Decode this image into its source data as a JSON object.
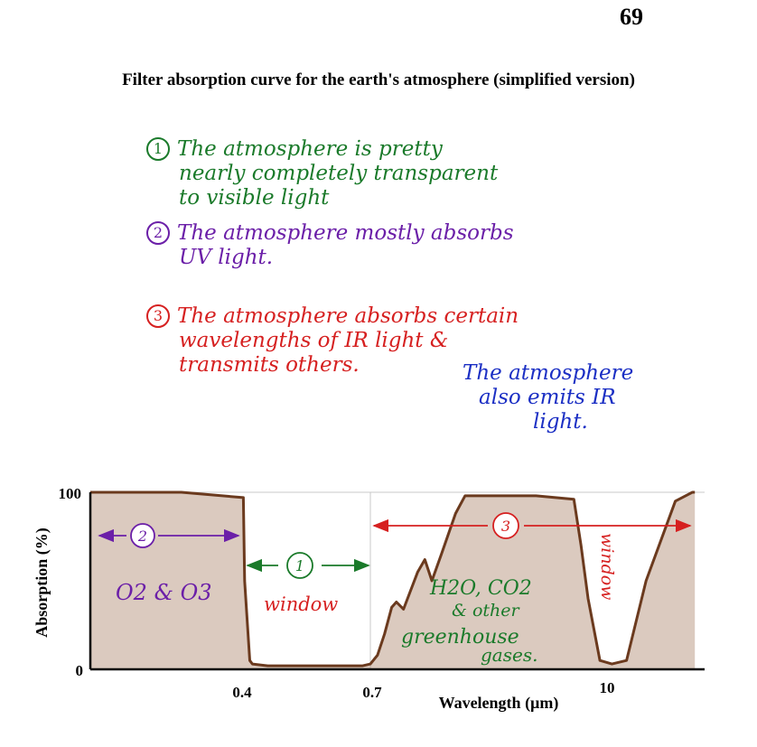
{
  "page_number": "69",
  "title": "Filter absorption curve for the earth's atmosphere (simplified version)",
  "notes": [
    {
      "marker": "1",
      "color": "#1a7a2a",
      "lines": [
        "The atmosphere is pretty",
        "nearly completely transparent",
        "to visible light"
      ]
    },
    {
      "marker": "2",
      "color": "#6b1fa8",
      "lines": [
        "The atmosphere mostly absorbs",
        "UV light."
      ]
    },
    {
      "marker": "3",
      "color": "#d62020",
      "lines": [
        "The atmosphere absorbs certain",
        "wavelengths of IR light &",
        "transmits others."
      ]
    },
    {
      "marker": "",
      "color": "#1b2fc4",
      "lines": [
        "The atmosphere",
        "also emits IR",
        "light."
      ]
    }
  ],
  "chart_data": {
    "type": "line",
    "title": "",
    "xlabel": "Wavelength (µm)",
    "ylabel": "Absorption (%)",
    "x_tick_labels": [
      "0.4",
      "0.7",
      "10"
    ],
    "y_tick_labels": [
      "0",
      "100"
    ],
    "ylim": [
      0,
      100
    ],
    "grid": true,
    "series": [
      {
        "color": "#6b3a1e",
        "x_position": [
          0.0,
          0.05,
          0.3,
          0.505,
          0.51,
          0.53,
          0.54,
          0.6,
          0.97,
          1.0,
          1.03,
          1.06,
          1.09,
          1.11,
          1.14,
          1.2,
          1.23,
          1.26,
          1.3,
          1.36,
          1.4,
          1.7,
          1.86,
          1.89,
          1.92,
          1.97,
          2.01,
          2.04,
          2.08,
          2.14,
          2.175,
          2.18
        ],
        "values": [
          100,
          100,
          100,
          97,
          50,
          5,
          3,
          2,
          2,
          3,
          8,
          20,
          35,
          38,
          34,
          55,
          62,
          50,
          65,
          88,
          98,
          98,
          96,
          70,
          40,
          5,
          3,
          5,
          50,
          95,
          100,
          100
        ]
      }
    ],
    "annotations": [
      {
        "label": "2",
        "color": "#6b1fa8",
        "region": "UV"
      },
      {
        "label": "1",
        "color": "#1a7a2a",
        "region": "visible"
      },
      {
        "label": "3",
        "color": "#d62020",
        "region": "IR"
      },
      {
        "text": "O2 & O3",
        "color": "#6b1fa8"
      },
      {
        "text": "window",
        "color": "#d62020"
      },
      {
        "text": "H2O, CO2",
        "color": "#1a7a2a"
      },
      {
        "text": "& other",
        "color": "#1a7a2a"
      },
      {
        "text": "greenhouse",
        "color": "#1a7a2a"
      },
      {
        "text": "gases.",
        "color": "#1a7a2a"
      },
      {
        "text": "window",
        "color": "#d62020",
        "orientation": "vertical"
      }
    ]
  }
}
